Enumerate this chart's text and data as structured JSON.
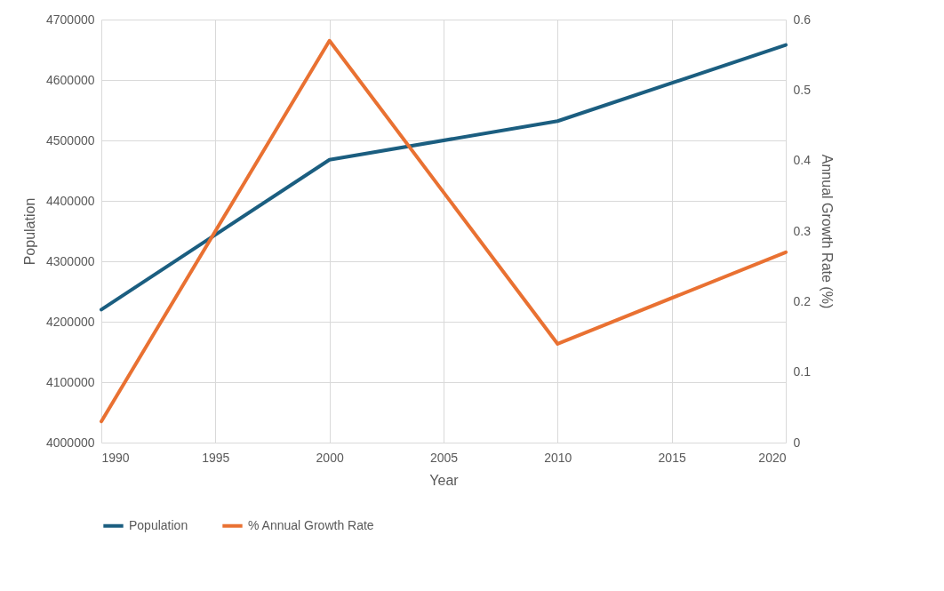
{
  "chart_data": {
    "type": "line",
    "xlabel": "Year",
    "ylabel": "Population",
    "y2label": "Annual Growth Rate (%)",
    "x": [
      1990,
      2000,
      2010,
      2020
    ],
    "series": [
      {
        "name": "Population",
        "color": "#1b5e80",
        "values": [
          4220000,
          4468000,
          4532000,
          4658000
        ]
      },
      {
        "name": "% Annual Growth Rate",
        "color": "#e97132",
        "values": [
          0.03,
          0.57,
          0.14,
          0.27
        ],
        "axis": "y2"
      }
    ],
    "xlim": [
      1990,
      2020
    ],
    "xticks": [
      1990,
      1995,
      2000,
      2005,
      2010,
      2015,
      2020
    ],
    "ylim": [
      4000000,
      4700000
    ],
    "yticks": [
      4000000,
      4100000,
      4200000,
      4300000,
      4400000,
      4500000,
      4600000,
      4700000
    ],
    "y2lim": [
      0,
      0.6
    ],
    "y2ticks": [
      0,
      0.1,
      0.2,
      0.3,
      0.4,
      0.5,
      0.6
    ],
    "grid": true,
    "legend": "bottom",
    "line_style": "solid",
    "marker": "none"
  }
}
